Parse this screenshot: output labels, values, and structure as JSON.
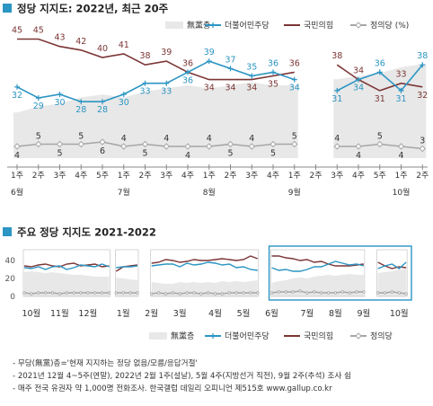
{
  "colors": {
    "minjoo": "#2b95c3",
    "gukmin": "#7c3535",
    "jeongui": "#a6a6a6",
    "noparty": "#e8e8e8",
    "title_bullet": "#2b95c3",
    "highlight_box": "#2b95c3"
  },
  "chart_data": [
    {
      "type": "line",
      "title": "정당 지지도: 2022년, 최근 20주",
      "legend_position": "top-right",
      "legend": {
        "noparty": "無黨층",
        "minjoo": "더불어민주당",
        "gukmin": "국민의힘",
        "jeongui": "정의당 (%)"
      },
      "x_week_labels": [
        "1주",
        "2주",
        "3주",
        "4주",
        "5주",
        "1주",
        "2주",
        "3주",
        "4주",
        "1주",
        "2주",
        "3주",
        "4주",
        "1주",
        "2주",
        "3주",
        "4주",
        "5주",
        "1주",
        "2주"
      ],
      "x_month_labels": [
        {
          "label": "6월",
          "at_index": 0
        },
        {
          "label": "7월",
          "at_index": 5
        },
        {
          "label": "8월",
          "at_index": 9
        },
        {
          "label": "9월",
          "at_index": 13
        },
        {
          "label": "10월",
          "at_index": 18
        }
      ],
      "gap_after_index": 14,
      "series": [
        {
          "name": "국민의힘",
          "key": "gukmin",
          "values": [
            45,
            45,
            43,
            42,
            40,
            41,
            38,
            39,
            36,
            34,
            34,
            34,
            35,
            36,
            null,
            38,
            34,
            31,
            33,
            32
          ]
        },
        {
          "name": "더불어민주당",
          "key": "minjoo",
          "values": [
            32,
            29,
            30,
            28,
            28,
            30,
            33,
            33,
            36,
            39,
            37,
            35,
            36,
            34,
            null,
            31,
            34,
            36,
            31,
            38
          ]
        },
        {
          "name": "정의당",
          "key": "jeongui",
          "values": [
            4,
            5,
            5,
            5,
            6,
            4,
            5,
            4,
            4,
            4,
            5,
            4,
            5,
            5,
            null,
            4,
            4,
            5,
            4,
            3
          ]
        },
        {
          "name": "無黨층",
          "key": "noparty",
          "values": [
            15,
            17,
            18,
            20,
            21,
            20,
            22,
            23,
            24,
            23,
            24,
            25,
            24,
            24,
            null,
            26,
            27,
            28,
            30,
            31
          ]
        }
      ]
    },
    {
      "type": "line",
      "title": "주요 정당 지지도 2021-2022",
      "legend_position": "bottom-right",
      "legend": {
        "noparty": "無黨층",
        "minjoo": "더불어민주당",
        "gukmin": "국민의힘",
        "jeongui": "정의당"
      },
      "y_ticks": [
        "40",
        "20",
        "0"
      ],
      "ylim": [
        0,
        50
      ],
      "x_month_labels": [
        {
          "label": "10월",
          "at_week": 1
        },
        {
          "label": "11월",
          "at_week": 5
        },
        {
          "label": "12월",
          "at_week": 9
        },
        {
          "label": "1월",
          "at_week": 14
        },
        {
          "label": "2월",
          "at_week": 18
        },
        {
          "label": "3월",
          "at_week": 22
        },
        {
          "label": "4월",
          "at_week": 27
        },
        {
          "label": "5월",
          "at_week": 31
        },
        {
          "label": "6월",
          "at_week": 35
        },
        {
          "label": "7월",
          "at_week": 40
        },
        {
          "label": "8월",
          "at_week": 44
        },
        {
          "label": "9월",
          "at_week": 48
        },
        {
          "label": "10월",
          "at_week": 53
        }
      ],
      "total_weeks": 55,
      "highlight_weeks": [
        35,
        55
      ],
      "segments": [
        {
          "start_week": 0,
          "gukmin": [
            34,
            33,
            35,
            36,
            34,
            33,
            36,
            37,
            34,
            35,
            36,
            33,
            34
          ],
          "minjoo": [
            32,
            31,
            33,
            30,
            33,
            34,
            30,
            32,
            35,
            34,
            33,
            36,
            33
          ],
          "jeongui": [
            4,
            3,
            4,
            4,
            4,
            3,
            4,
            4,
            4,
            4,
            4,
            4,
            4
          ],
          "noparty": [
            27,
            28,
            27,
            26,
            27,
            26,
            25,
            24,
            24,
            23,
            22,
            22,
            22
          ]
        },
        {
          "start_week": 13,
          "gukmin": [
            28,
            33,
            34,
            35
          ],
          "minjoo": [
            32,
            33,
            33,
            34
          ],
          "jeongui": [
            4,
            4,
            4,
            4
          ],
          "noparty": [
            21,
            20,
            19,
            18
          ]
        },
        {
          "start_week": 18,
          "gukmin": [
            37,
            38,
            41,
            40,
            38,
            39,
            41,
            40,
            40,
            41,
            42,
            41,
            40,
            41,
            45,
            42
          ],
          "minjoo": [
            34,
            35,
            36,
            36,
            33,
            37,
            35,
            36,
            38,
            37,
            35,
            36,
            32,
            33,
            30,
            29
          ],
          "jeongui": [
            3,
            4,
            3,
            4,
            3,
            4,
            4,
            3,
            4,
            3,
            3,
            4,
            4,
            4,
            4,
            4
          ],
          "noparty": [
            16,
            15,
            14,
            14,
            16,
            15,
            16,
            15,
            16,
            15,
            17,
            16,
            17,
            16,
            17,
            18
          ]
        },
        {
          "start_week": 35,
          "gukmin": [
            45,
            45,
            43,
            42,
            40,
            41,
            38,
            39,
            36,
            34,
            34,
            34,
            35,
            36
          ],
          "minjoo": [
            32,
            29,
            30,
            28,
            28,
            30,
            33,
            33,
            36,
            39,
            37,
            35,
            36,
            34
          ],
          "jeongui": [
            4,
            5,
            5,
            5,
            6,
            4,
            5,
            4,
            4,
            4,
            5,
            4,
            5,
            5
          ],
          "noparty": [
            15,
            17,
            18,
            20,
            21,
            20,
            22,
            23,
            24,
            23,
            24,
            25,
            24,
            24
          ]
        },
        {
          "start_week": 50,
          "gukmin": [
            38,
            34,
            31,
            33,
            32
          ],
          "minjoo": [
            31,
            34,
            36,
            31,
            38
          ],
          "jeongui": [
            4,
            4,
            5,
            4,
            3
          ],
          "noparty": [
            26,
            27,
            28,
            30,
            31
          ]
        }
      ]
    }
  ],
  "footnotes": [
    "- 무당(無黨)층='현재 지지하는 정당 없음/모름/응답거절'",
    "- 2021년 12월 4~5주(연말), 2022년 2월 1주(설날), 5월 4주(지방선거 직전), 9월 2주(추석) 조사 쉼",
    "- 매주 전국 유권자 약 1,000명 전화조사. 한국갤럽 데일리 오피니언 제515호 www.gallup.co.kr"
  ]
}
